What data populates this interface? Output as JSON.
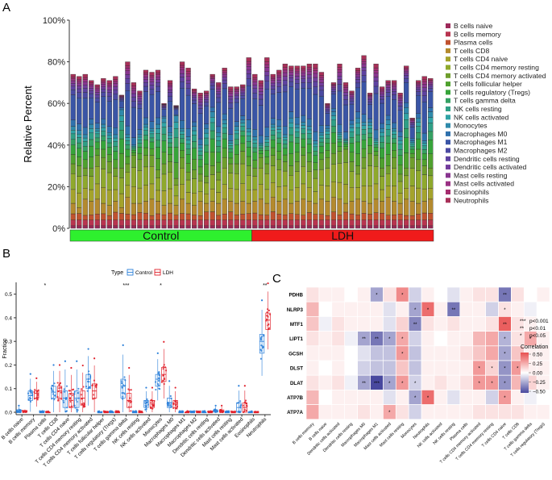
{
  "panels": {
    "a": "A",
    "b": "B",
    "c": "C"
  },
  "chart_data": [
    {
      "type": "stacked_bar",
      "panel": "A",
      "ylabel": "Relative Percent",
      "yticks": [
        "0%",
        "20%",
        "40%",
        "60%",
        "80%",
        "100%"
      ],
      "ylim": [
        0,
        100
      ],
      "groups": [
        {
          "label": "Control",
          "count": 30,
          "color": "#2ef02e"
        },
        {
          "label": "LDH",
          "count": 30,
          "color": "#f01b1b"
        }
      ],
      "legend": [
        {
          "name": "B cells naive",
          "color": "#9d2a5a"
        },
        {
          "name": "B cells memory",
          "color": "#b8344f"
        },
        {
          "name": "Plasma cells",
          "color": "#c0522f"
        },
        {
          "name": "T cells CD8",
          "color": "#b48a2e"
        },
        {
          "name": "T cells CD4 naive",
          "color": "#a4a32c"
        },
        {
          "name": "T cells CD4 memory resting",
          "color": "#8fa92c"
        },
        {
          "name": "T cells CD4 memory activated",
          "color": "#6f9e2c"
        },
        {
          "name": "T cells follicular helper",
          "color": "#4fa12e"
        },
        {
          "name": "T cells regulatory (Tregs)",
          "color": "#37a43a"
        },
        {
          "name": "T cells gamma delta",
          "color": "#35a163"
        },
        {
          "name": "NK cells resting",
          "color": "#2f9f86"
        },
        {
          "name": "NK cells activated",
          "color": "#30a3a5"
        },
        {
          "name": "Monocytes",
          "color": "#2f8aab"
        },
        {
          "name": "Macrophages M0",
          "color": "#3071ad"
        },
        {
          "name": "Macrophages M1",
          "color": "#3a55a6"
        },
        {
          "name": "Macrophages M2",
          "color": "#4b4aa2"
        },
        {
          "name": "Dendritic cells resting",
          "color": "#5e42a0"
        },
        {
          "name": "Dendritic cells activated",
          "color": "#733c9d"
        },
        {
          "name": "Mast cells resting",
          "color": "#88358f"
        },
        {
          "name": "Mast cells activated",
          "color": "#9b3184"
        },
        {
          "name": "Eosinophils",
          "color": "#a52d6e"
        },
        {
          "name": "Neutrophils",
          "color": "#a83058"
        }
      ],
      "neutrophil_top_percent": [
        74,
        73,
        74,
        71,
        69,
        72,
        71,
        73,
        64,
        80,
        70,
        66,
        76,
        75,
        76,
        60,
        71,
        59,
        80,
        77,
        67,
        65,
        66,
        74,
        70,
        77,
        68,
        68,
        69,
        82,
        74,
        71,
        82,
        74,
        76,
        79,
        78,
        78,
        78,
        79,
        79,
        75,
        60,
        70,
        79,
        70,
        66,
        77,
        83,
        65,
        79,
        68,
        71,
        71,
        65,
        78,
        53,
        71,
        73,
        72
      ],
      "monocyte_top_percent": [
        49,
        47,
        45,
        50,
        48,
        50,
        46,
        45,
        57,
        45,
        40,
        45,
        50,
        48,
        50,
        53,
        46,
        54,
        48,
        44,
        49,
        40,
        48,
        56,
        46,
        52,
        42,
        49,
        52,
        48,
        44,
        41,
        44,
        50,
        49,
        45,
        53,
        50,
        51,
        49,
        42,
        46,
        48,
        56,
        46,
        43,
        50,
        53,
        51,
        51,
        43,
        48,
        52,
        48,
        44,
        58,
        42,
        53,
        42,
        56
      ],
      "cd4_resting_top_percent": [
        31,
        30,
        29,
        29,
        35,
        34,
        32,
        29,
        29,
        31,
        35,
        33,
        35,
        35,
        28,
        31,
        32,
        24,
        34,
        27,
        28,
        26,
        25,
        30,
        27,
        34,
        31,
        31,
        37,
        30,
        29,
        34,
        31,
        35,
        33,
        32,
        30,
        32,
        35,
        32,
        28,
        33,
        34,
        36,
        37,
        38,
        32,
        30,
        34,
        36,
        35,
        29,
        30,
        34,
        26,
        29,
        34,
        33,
        30,
        29
      ],
      "cd8_top_percent": [
        12,
        10,
        14,
        13,
        14,
        12,
        11,
        13,
        10,
        15,
        12,
        12,
        13,
        14,
        13,
        11,
        12,
        11,
        14,
        12,
        11,
        13,
        12,
        13,
        12,
        14,
        13,
        12,
        13,
        12,
        13,
        14,
        12,
        15,
        13,
        14,
        12,
        13,
        14,
        13,
        12,
        14,
        13,
        15,
        14,
        12,
        13,
        14,
        13,
        12,
        14,
        13,
        15,
        13,
        12,
        14,
        13,
        12,
        13,
        14
      ]
    },
    {
      "type": "boxplot",
      "panel": "B",
      "legend_title": "Type",
      "series": [
        {
          "name": "Control",
          "color": "#2a7fd9"
        },
        {
          "name": "LDH",
          "color": "#e0212b"
        }
      ],
      "ylabel": "Fraction",
      "yticks": [
        "0.0",
        "0.1",
        "0.2",
        "0.3",
        "0.4",
        "0.5"
      ],
      "ylim": [
        0,
        0.55
      ],
      "categories": [
        "B cells naive",
        "B cells memory",
        "Plasma cells",
        "T cells CD8",
        "T cells CD4 naive",
        "T cells CD4 memory resting",
        "T cells CD4 memory activated",
        "T cells follicular helper",
        "T cells regulatory (Tregs)",
        "T cells gamma delta",
        "NK cells resting",
        "NK cells activated",
        "Monocytes",
        "Macrophages M0",
        "Macrophages M1",
        "Macrophages M2",
        "Dendritic cells resting",
        "Dendritic cells activated",
        "Mast cells resting",
        "Mast cells activated",
        "Eosinophils",
        "Neutrophils"
      ],
      "control_medians": [
        0.005,
        0.07,
        0.0,
        0.085,
        0.06,
        0.06,
        0.14,
        0.0,
        0.0,
        0.11,
        0.0,
        0.04,
        0.14,
        0.04,
        0.0,
        0.0,
        0.0,
        0.005,
        0.0,
        0.02,
        0.0,
        0.3
      ],
      "ldh_medians": [
        0.0,
        0.08,
        0.0,
        0.09,
        0.05,
        0.06,
        0.09,
        0.0,
        0.0,
        0.05,
        0.0,
        0.04,
        0.16,
        0.035,
        0.0,
        0.0,
        0.0,
        0.005,
        0.0,
        0.02,
        0.0,
        0.39
      ],
      "control_q1": [
        0.0,
        0.05,
        0.0,
        0.06,
        0.02,
        0.02,
        0.1,
        0.0,
        0.0,
        0.06,
        0.0,
        0.02,
        0.11,
        0.02,
        0.0,
        0.0,
        0.0,
        0.0,
        0.0,
        0.0,
        0.0,
        0.25
      ],
      "control_q3": [
        0.01,
        0.09,
        0.0,
        0.11,
        0.09,
        0.09,
        0.16,
        0.0,
        0.0,
        0.14,
        0.0,
        0.05,
        0.16,
        0.06,
        0.0,
        0.0,
        0.0,
        0.01,
        0.0,
        0.04,
        0.0,
        0.33
      ],
      "ldh_q1": [
        0.0,
        0.06,
        0.0,
        0.06,
        0.02,
        0.03,
        0.06,
        0.0,
        0.0,
        0.02,
        0.0,
        0.02,
        0.13,
        0.02,
        0.0,
        0.0,
        0.0,
        0.0,
        0.0,
        0.0,
        0.0,
        0.35
      ],
      "ldh_q3": [
        0.005,
        0.09,
        0.0,
        0.11,
        0.08,
        0.09,
        0.12,
        0.0,
        0.0,
        0.08,
        0.0,
        0.05,
        0.19,
        0.05,
        0.0,
        0.0,
        0.0,
        0.01,
        0.0,
        0.04,
        0.0,
        0.42
      ],
      "significance": [
        "",
        "",
        "*",
        "",
        "",
        "",
        "",
        "",
        "",
        "***",
        "",
        "",
        "*",
        "",
        "",
        "",
        "",
        "",
        "",
        "",
        "",
        "**"
      ]
    },
    {
      "type": "heatmap",
      "panel": "C",
      "rows": [
        "PDHB",
        "NLRP3",
        "MTF1",
        "LIPT1",
        "GCSH",
        "DLST",
        "DLAT",
        "ATP7B",
        "ATP7A"
      ],
      "columns": [
        "B cells memory",
        "B cells naive",
        "Dendritic cells activated",
        "Dendritic cells resting",
        "Macrophages M0",
        "Macrophages M1",
        "Mast cells activated",
        "Mast cells resting",
        "Monocytes",
        "Neutrophils",
        "NK cells activated",
        "NK cells resting",
        "Plasma cells",
        "T cells CD4 memory activated",
        "T cells CD4 memory resting",
        "T cells CD4 naive",
        "T cells CD8",
        "T cells gamma delta",
        "T cells regulatory (Tregs)"
      ],
      "values": [
        [
          0.1,
          0.05,
          0.05,
          0.0,
          0.05,
          -0.3,
          0.1,
          0.4,
          -0.15,
          0.05,
          0.0,
          -0.1,
          0.05,
          0.1,
          0.1,
          -0.45,
          0.1,
          0.0,
          0.05
        ],
        [
          0.25,
          0.0,
          0.05,
          0.05,
          0.05,
          0.05,
          -0.1,
          0.05,
          -0.3,
          0.5,
          0.05,
          -0.45,
          0.05,
          0.05,
          -0.15,
          0.1,
          0.05,
          -0.05,
          0.0
        ],
        [
          0.2,
          -0.05,
          0.1,
          0.05,
          0.05,
          0.05,
          -0.1,
          0.15,
          -0.4,
          0.1,
          0.05,
          0.1,
          0.05,
          0.05,
          0.1,
          0.55,
          0.1,
          0.05,
          0.0
        ],
        [
          0.1,
          0.05,
          0.1,
          -0.05,
          -0.3,
          -0.45,
          -0.3,
          0.3,
          -0.15,
          0.05,
          0.0,
          0.05,
          0.05,
          0.25,
          0.3,
          -0.25,
          0.1,
          0.3,
          0.05
        ],
        [
          0.05,
          0.05,
          0.05,
          0.0,
          -0.1,
          -0.2,
          -0.2,
          0.35,
          -0.2,
          0.05,
          0.05,
          0.05,
          0.1,
          0.2,
          0.3,
          -0.3,
          0.2,
          0.05,
          0.05
        ],
        [
          0.05,
          0.0,
          0.05,
          0.0,
          -0.15,
          -0.2,
          -0.2,
          0.2,
          -0.2,
          0.05,
          0.05,
          0.05,
          0.05,
          0.35,
          0.15,
          -0.35,
          0.35,
          0.05,
          0.05
        ],
        [
          0.1,
          0.05,
          0.1,
          -0.05,
          -0.3,
          -0.6,
          -0.3,
          0.35,
          -0.15,
          0.05,
          0.1,
          0.05,
          0.1,
          0.35,
          0.35,
          -0.35,
          0.25,
          0.15,
          0.05
        ],
        [
          0.25,
          0.0,
          0.05,
          0.05,
          0.05,
          0.05,
          -0.1,
          0.05,
          -0.3,
          0.5,
          0.05,
          -0.1,
          0.05,
          0.05,
          -0.15,
          0.35,
          0.05,
          -0.05,
          0.0
        ],
        [
          0.3,
          0.05,
          0.05,
          0.05,
          0.1,
          0.05,
          0.3,
          0.1,
          -0.15,
          0.05,
          0.05,
          0.05,
          0.05,
          0.1,
          0.1,
          0.1,
          0.1,
          0.05,
          0.05
        ]
      ],
      "stars": [
        [
          "",
          "",
          "",
          "",
          "",
          "*",
          "",
          "*",
          "",
          "",
          "",
          "",
          "",
          "",
          "",
          "**",
          "",
          "",
          ""
        ],
        [
          "",
          "",
          "",
          "",
          "",
          "",
          "",
          "",
          "*",
          "*",
          "",
          "**",
          "",
          "",
          "",
          "*",
          "",
          "",
          ""
        ],
        [
          "",
          "",
          "",
          "",
          "",
          "",
          "",
          "",
          "**",
          "",
          "",
          "",
          "",
          "",
          "",
          "**",
          "",
          "",
          ""
        ],
        [
          "",
          "",
          "",
          "",
          "**",
          "**",
          "*",
          "*",
          "",
          "",
          "",
          "",
          "",
          "",
          "",
          "*",
          "",
          "*",
          ""
        ],
        [
          "",
          "",
          "",
          "",
          "",
          "",
          "",
          "*",
          "",
          "",
          "",
          "",
          "",
          "",
          "",
          "*",
          "",
          "",
          ""
        ],
        [
          "",
          "",
          "",
          "",
          "",
          "",
          "",
          "",
          "",
          "",
          "",
          "",
          "",
          "*",
          "*",
          "*",
          "*",
          "",
          ""
        ],
        [
          "",
          "",
          "",
          "",
          "**",
          "***",
          "*",
          "*",
          "*",
          "",
          "",
          "",
          "",
          "*",
          "*",
          "*",
          "",
          "",
          ""
        ],
        [
          "",
          "",
          "",
          "",
          "",
          "",
          "",
          "",
          "*",
          "*",
          "",
          "",
          "",
          "",
          "",
          "*",
          "",
          "",
          ""
        ],
        [
          "",
          "",
          "",
          "",
          "",
          "",
          "*",
          "",
          "",
          "",
          "",
          "",
          "",
          "",
          "",
          "",
          "",
          "",
          ""
        ]
      ],
      "sig_legend": [
        {
          "stars": "***",
          "label": "p<0.001"
        },
        {
          "stars": "**",
          "label": "p<0.01"
        },
        {
          "stars": "*",
          "label": "p<0.05"
        }
      ],
      "colorbar_title": "Correlation",
      "colorbar_ticks": [
        "0.50",
        "0.25",
        "0.00",
        "−0.25",
        "−0.50"
      ]
    }
  ]
}
